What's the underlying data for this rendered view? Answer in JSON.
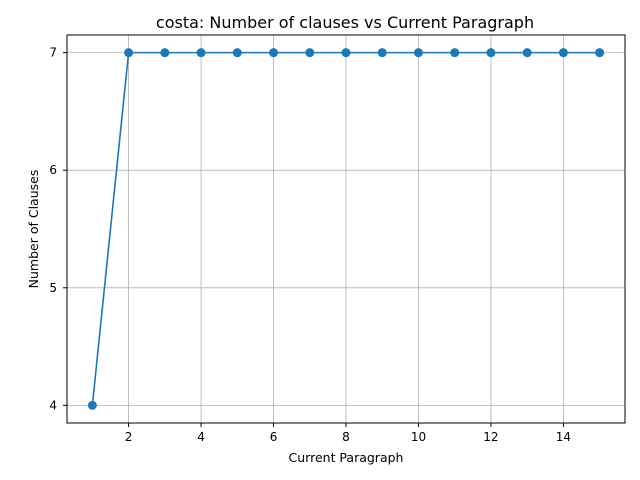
{
  "chart_data": {
    "type": "line",
    "title": "costa: Number of clauses vs Current Paragraph",
    "xlabel": "Current Paragraph",
    "ylabel": "Number of Clauses",
    "xlim": [
      0.3,
      15.7
    ],
    "ylim": [
      3.85,
      7.15
    ],
    "xticks": [
      2,
      4,
      6,
      8,
      10,
      12,
      14
    ],
    "yticks": [
      4,
      5,
      6,
      7
    ],
    "grid": true,
    "series": [
      {
        "color": "#1f77b4",
        "marker": "circle",
        "x": [
          1,
          2,
          3,
          4,
          5,
          6,
          7,
          8,
          9,
          10,
          11,
          12,
          13,
          14,
          15
        ],
        "y": [
          4,
          7,
          7,
          7,
          7,
          7,
          7,
          7,
          7,
          7,
          7,
          7,
          7,
          7,
          7
        ]
      }
    ]
  }
}
